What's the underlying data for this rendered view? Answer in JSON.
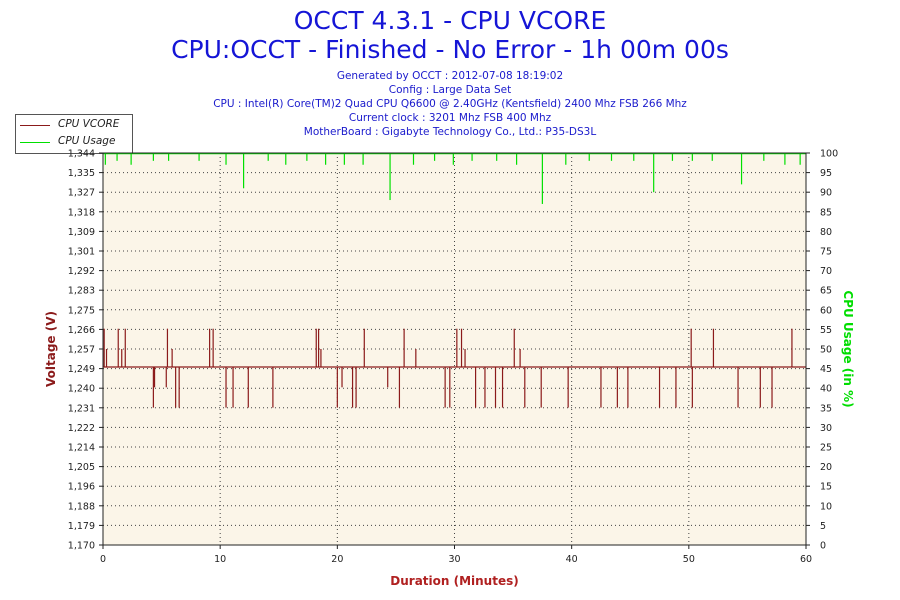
{
  "header": {
    "title": "OCCT 4.3.1 - CPU VCORE",
    "subtitle": "CPU:OCCT - Finished - No Error - 1h 00m 00s",
    "info_lines": [
      "Generated by OCCT : 2012-07-08 18:19:02",
      "Config : Large Data Set",
      "CPU : Intel(R) Core(TM)2 Quad CPU Q6600 @ 2.40GHz (Kentsfield) 2400 Mhz FSB 266 Mhz",
      "Current clock : 3201 Mhz FSB 400 Mhz",
      "MotherBoard : Gigabyte Technology Co., Ltd.: P35-DS3L"
    ]
  },
  "legend": {
    "items": [
      {
        "label": "CPU VCORE",
        "color": "#8b1a1a"
      },
      {
        "label": "CPU Usage",
        "color": "#00e000"
      }
    ]
  },
  "colors": {
    "plot_background": "#fbf5e8",
    "vcore": "#8b1a1a",
    "usage": "#00e000",
    "left_axis_title": "#8b1a1a",
    "right_axis_title": "#00dd00",
    "x_axis_title": "#b02020"
  },
  "chart_data": {
    "type": "line",
    "xlabel": "Duration (Minutes)",
    "ylabel": "Voltage (V)",
    "y2label": "CPU Usage (in %)",
    "xlim": [
      0,
      60
    ],
    "x_ticks": [
      "0",
      "10",
      "20",
      "30",
      "40",
      "50",
      "60"
    ],
    "ylim": [
      1.17,
      1.344
    ],
    "y_ticks": [
      "1,170",
      "1,179",
      "1,188",
      "1,196",
      "1,205",
      "1,214",
      "1,222",
      "1,231",
      "1,240",
      "1,249",
      "1,257",
      "1,266",
      "1,275",
      "1,283",
      "1,292",
      "1,301",
      "1,309",
      "1,318",
      "1,327",
      "1,335",
      "1,344"
    ],
    "y2lim": [
      0,
      100
    ],
    "y2_ticks": [
      "0",
      "5",
      "10",
      "15",
      "20",
      "25",
      "30",
      "35",
      "40",
      "45",
      "50",
      "55",
      "60",
      "65",
      "70",
      "75",
      "80",
      "85",
      "90",
      "95",
      "100"
    ],
    "grid": true,
    "vcore_baseline": 1.249,
    "vcore_spikes_up": [
      {
        "x": 0.1,
        "y": 1.266
      },
      {
        "x": 0.3,
        "y": 1.257
      },
      {
        "x": 1.3,
        "y": 1.266
      },
      {
        "x": 1.6,
        "y": 1.257
      },
      {
        "x": 1.9,
        "y": 1.266
      },
      {
        "x": 5.5,
        "y": 1.266
      },
      {
        "x": 5.9,
        "y": 1.257
      },
      {
        "x": 9.1,
        "y": 1.266
      },
      {
        "x": 9.4,
        "y": 1.266
      },
      {
        "x": 18.2,
        "y": 1.266
      },
      {
        "x": 18.4,
        "y": 1.266
      },
      {
        "x": 18.6,
        "y": 1.257
      },
      {
        "x": 22.3,
        "y": 1.266
      },
      {
        "x": 25.7,
        "y": 1.266
      },
      {
        "x": 26.7,
        "y": 1.257
      },
      {
        "x": 30.2,
        "y": 1.266
      },
      {
        "x": 30.6,
        "y": 1.266
      },
      {
        "x": 30.9,
        "y": 1.257
      },
      {
        "x": 35.1,
        "y": 1.266
      },
      {
        "x": 35.6,
        "y": 1.257
      },
      {
        "x": 50.2,
        "y": 1.266
      },
      {
        "x": 52.1,
        "y": 1.266
      },
      {
        "x": 58.8,
        "y": 1.266
      }
    ],
    "vcore_spikes_down": [
      {
        "x": 4.3,
        "y": 1.231
      },
      {
        "x": 4.4,
        "y": 1.24
      },
      {
        "x": 5.4,
        "y": 1.24
      },
      {
        "x": 6.2,
        "y": 1.231
      },
      {
        "x": 6.5,
        "y": 1.231
      },
      {
        "x": 10.5,
        "y": 1.231
      },
      {
        "x": 11.1,
        "y": 1.231
      },
      {
        "x": 12.4,
        "y": 1.231
      },
      {
        "x": 14.5,
        "y": 1.231
      },
      {
        "x": 20.0,
        "y": 1.231
      },
      {
        "x": 20.4,
        "y": 1.24
      },
      {
        "x": 21.3,
        "y": 1.231
      },
      {
        "x": 21.6,
        "y": 1.231
      },
      {
        "x": 24.3,
        "y": 1.24
      },
      {
        "x": 25.3,
        "y": 1.231
      },
      {
        "x": 29.2,
        "y": 1.231
      },
      {
        "x": 29.6,
        "y": 1.231
      },
      {
        "x": 31.8,
        "y": 1.231
      },
      {
        "x": 32.6,
        "y": 1.231
      },
      {
        "x": 33.5,
        "y": 1.231
      },
      {
        "x": 34.1,
        "y": 1.231
      },
      {
        "x": 36.0,
        "y": 1.231
      },
      {
        "x": 37.4,
        "y": 1.231
      },
      {
        "x": 39.7,
        "y": 1.231
      },
      {
        "x": 42.5,
        "y": 1.231
      },
      {
        "x": 43.9,
        "y": 1.231
      },
      {
        "x": 44.8,
        "y": 1.231
      },
      {
        "x": 47.5,
        "y": 1.231
      },
      {
        "x": 48.9,
        "y": 1.231
      },
      {
        "x": 50.3,
        "y": 1.231
      },
      {
        "x": 54.2,
        "y": 1.231
      },
      {
        "x": 56.1,
        "y": 1.231
      },
      {
        "x": 57.1,
        "y": 1.231
      }
    ],
    "usage_baseline": 100,
    "usage_dips": [
      {
        "x": 0.2,
        "y": 97
      },
      {
        "x": 1.2,
        "y": 98
      },
      {
        "x": 2.4,
        "y": 97
      },
      {
        "x": 4.3,
        "y": 98
      },
      {
        "x": 5.6,
        "y": 98
      },
      {
        "x": 8.2,
        "y": 98
      },
      {
        "x": 10.5,
        "y": 97
      },
      {
        "x": 12.0,
        "y": 91
      },
      {
        "x": 14.1,
        "y": 98
      },
      {
        "x": 15.6,
        "y": 97
      },
      {
        "x": 17.4,
        "y": 98
      },
      {
        "x": 19.0,
        "y": 97
      },
      {
        "x": 20.6,
        "y": 97
      },
      {
        "x": 22.2,
        "y": 97
      },
      {
        "x": 24.5,
        "y": 88
      },
      {
        "x": 26.5,
        "y": 97
      },
      {
        "x": 28.3,
        "y": 98
      },
      {
        "x": 29.9,
        "y": 97
      },
      {
        "x": 31.5,
        "y": 98
      },
      {
        "x": 33.6,
        "y": 98
      },
      {
        "x": 35.3,
        "y": 97
      },
      {
        "x": 37.5,
        "y": 87
      },
      {
        "x": 39.5,
        "y": 97
      },
      {
        "x": 41.5,
        "y": 98
      },
      {
        "x": 43.4,
        "y": 98
      },
      {
        "x": 45.3,
        "y": 98
      },
      {
        "x": 47.0,
        "y": 90
      },
      {
        "x": 48.6,
        "y": 98
      },
      {
        "x": 50.3,
        "y": 98
      },
      {
        "x": 52.0,
        "y": 98
      },
      {
        "x": 54.5,
        "y": 92
      },
      {
        "x": 56.4,
        "y": 98
      },
      {
        "x": 58.2,
        "y": 97
      },
      {
        "x": 59.5,
        "y": 97
      }
    ]
  }
}
